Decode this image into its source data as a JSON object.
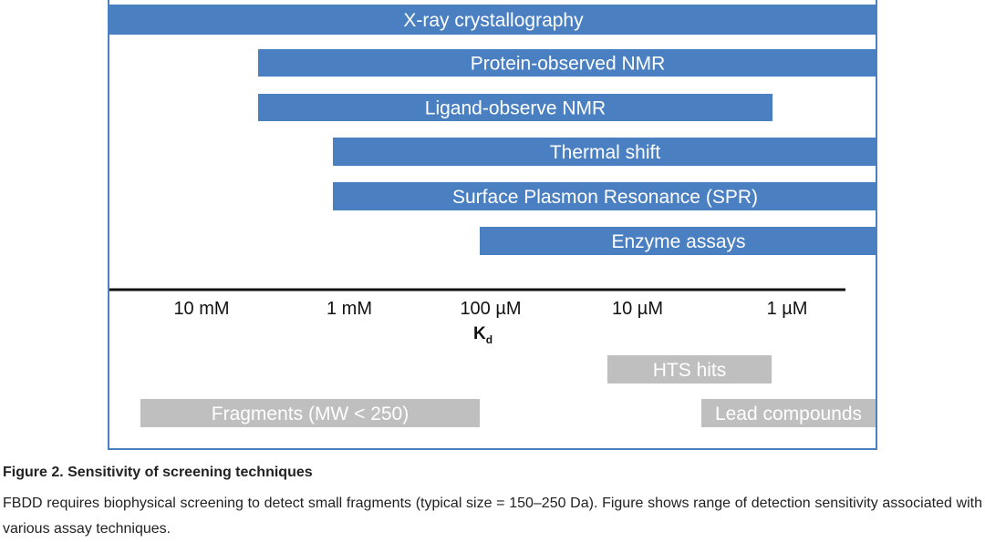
{
  "chart_data": {
    "type": "bar",
    "orientation": "horizontal-range",
    "x_scale": "log",
    "x_direction": "decreasing",
    "xlabel": "Kd",
    "xlabel_main": "K",
    "xlabel_sub": "d",
    "ticks": [
      {
        "label": "10 mM",
        "value_M": 0.01
      },
      {
        "label": "1 mM",
        "value_M": 0.001
      },
      {
        "label": "100 µM",
        "value_M": 0.0001
      },
      {
        "label": "10 µM",
        "value_M": 1e-05
      },
      {
        "label": "1 µM",
        "value_M": 1e-06
      }
    ],
    "techniques": [
      {
        "label": "X-ray crystallography",
        "from": "> 10 mM",
        "to": "< 1 µM"
      },
      {
        "label": "Protein-observed NMR",
        "from": "~5 mM",
        "to": "< 1 µM"
      },
      {
        "label": "Ligand-observe NMR",
        "from": "~5 mM",
        "to": "~1.3 µM"
      },
      {
        "label": "Thermal shift",
        "from": "~1 mM",
        "to": "< 1 µM"
      },
      {
        "label": "Surface Plasmon Resonance (SPR)",
        "from": "~1 mM",
        "to": "< 1 µM"
      },
      {
        "label": "Enzyme assays",
        "from": "~100 µM",
        "to": "< 1 µM"
      }
    ],
    "compound_classes": [
      {
        "label": "HTS hits",
        "from": "~10 µM",
        "to": "~1.3 µM"
      },
      {
        "label": "Fragments (MW < 250)",
        "from": "~20 mM",
        "to": "~100 µM"
      },
      {
        "label": "Lead compounds",
        "from": "~2 µM",
        "to": "< 1 µM"
      }
    ],
    "colors": {
      "technique_bar": "#4a7fc1",
      "compound_bar": "#bfbfbf",
      "bar_text": "#ffffff",
      "axis": "#111111"
    }
  },
  "figure": {
    "title": "Figure 2. Sensitivity of screening techniques",
    "text": "FBDD requires biophysical screening to detect small fragments (typical size = 150–250 Da). Figure shows range of detection sensitivity associated with various assay techniques."
  }
}
